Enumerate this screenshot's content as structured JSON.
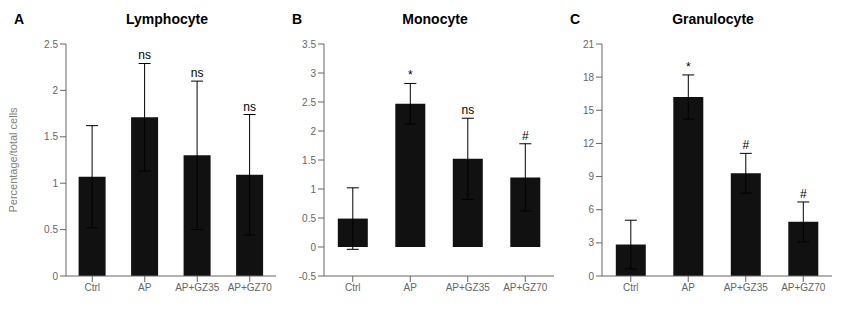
{
  "chart_data": [
    {
      "type": "bar",
      "label": "A",
      "title": "Lymphocyte",
      "ylabel": "Percentage/total cells",
      "categories": [
        "Ctrl",
        "AP",
        "AP+GZ35",
        "AP+GZ70"
      ],
      "values": [
        1.07,
        1.71,
        1.3,
        1.09
      ],
      "errors": [
        0.55,
        0.58,
        0.8,
        0.65
      ],
      "annotations": [
        null,
        "ns",
        "ns",
        "ns"
      ],
      "color": "#111111",
      "ylim": [
        0,
        2.5
      ],
      "yticks": [
        0,
        0.5,
        1,
        1.5,
        2,
        2.5
      ],
      "grid": false
    },
    {
      "type": "bar",
      "label": "B",
      "title": "Monocyte",
      "categories": [
        "Ctrl",
        "AP",
        "AP+GZ35",
        "AP+GZ70"
      ],
      "values": [
        0.49,
        2.47,
        1.52,
        1.2
      ],
      "errors": [
        0.53,
        0.35,
        0.7,
        0.58
      ],
      "annotations": [
        null,
        "*",
        "ns",
        "#"
      ],
      "color": "#111111",
      "ylim": [
        -0.5,
        3.5
      ],
      "yticks": [
        -0.5,
        0,
        0.5,
        1,
        1.5,
        2,
        2.5,
        3,
        3.5
      ],
      "grid": false
    },
    {
      "type": "bar",
      "label": "C",
      "title": "Granulocyte",
      "categories": [
        "Ctrl",
        "AP",
        "AP+GZ35",
        "AP+GZ70"
      ],
      "values": [
        2.85,
        16.2,
        9.3,
        4.9
      ],
      "errors": [
        2.2,
        2.0,
        1.8,
        1.8
      ],
      "annotations": [
        null,
        "*",
        "#",
        "#"
      ],
      "color": "#111111",
      "ylim": [
        0,
        21
      ],
      "yticks": [
        0,
        3,
        6,
        9,
        12,
        15,
        18,
        21
      ],
      "grid": false
    }
  ]
}
